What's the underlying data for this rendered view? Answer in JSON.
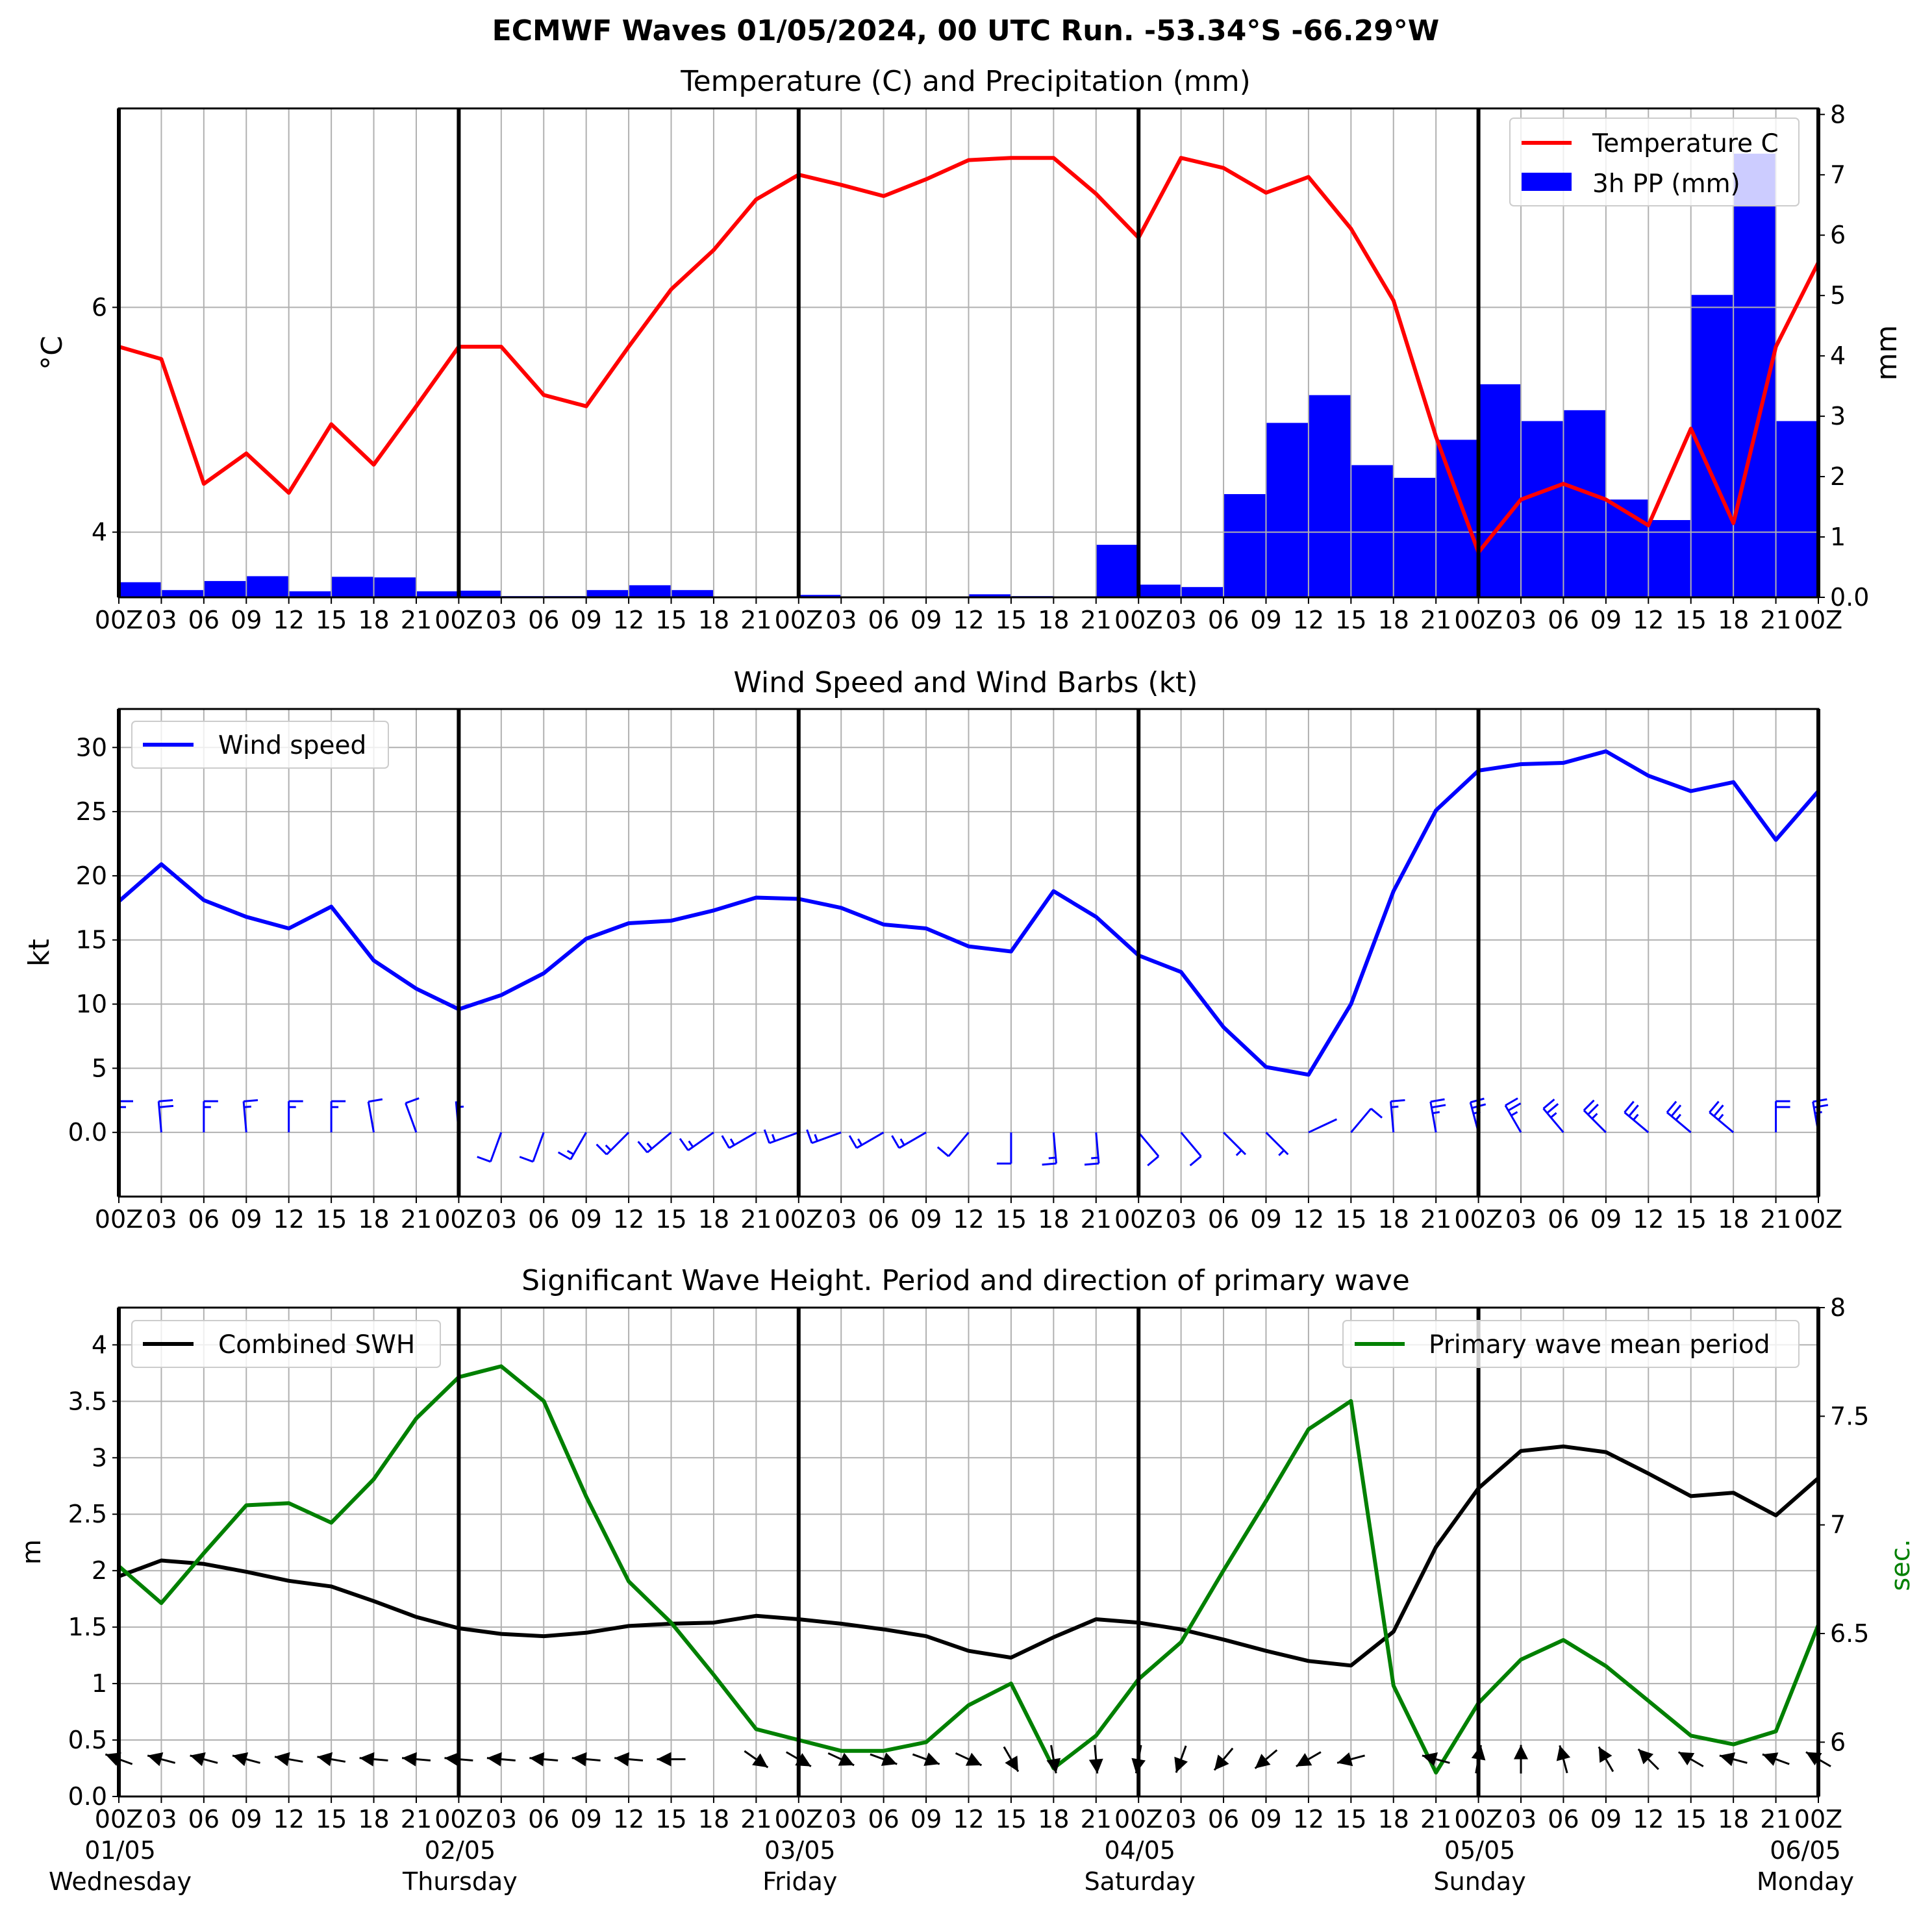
{
  "figure": {
    "suptitle": "ECMWF Waves 01/05/2024, 00 UTC Run. -53.34°S -66.29°W"
  },
  "time_axis": {
    "hours": [
      "00Z",
      "03",
      "06",
      "09",
      "12",
      "15",
      "18",
      "21",
      "00Z",
      "03",
      "06",
      "09",
      "12",
      "15",
      "18",
      "21",
      "00Z",
      "03",
      "06",
      "09",
      "12",
      "15",
      "18",
      "21",
      "00Z",
      "03",
      "06",
      "09",
      "12",
      "15",
      "18",
      "21",
      "00Z",
      "03",
      "06",
      "09",
      "12",
      "15",
      "18",
      "21",
      "00Z"
    ],
    "bottom_hours": [
      "00Z",
      "03",
      "06",
      "09",
      "12",
      "15",
      "18",
      "21",
      "00Z",
      "03",
      "06",
      "09",
      "12",
      "15",
      "18",
      "21",
      "00Z",
      "03",
      "06",
      "09",
      "12",
      "15",
      "18",
      "21",
      "00Z",
      "03",
      "06",
      "09",
      "12",
      "15",
      "18",
      "21",
      "00Z",
      "03",
      "06",
      "09",
      "12",
      "15",
      "18",
      "21",
      "00Z"
    ],
    "days": [
      {
        "date": "01/05",
        "weekday": "Wednesday"
      },
      {
        "date": "02/05",
        "weekday": "Thursday"
      },
      {
        "date": "03/05",
        "weekday": "Friday"
      },
      {
        "date": "04/05",
        "weekday": "Saturday"
      },
      {
        "date": "05/05",
        "weekday": "Sunday"
      },
      {
        "date": "06/05",
        "weekday": "Monday"
      }
    ]
  },
  "colors": {
    "temperature": "#ff0000",
    "precip": "#0000ff",
    "wind": "#0000ff",
    "swh": "#000000",
    "period": "#008000",
    "grid": "#b0b0b0"
  },
  "chart_data": [
    {
      "type": "line",
      "title": "Temperature (C) and Precipitation (mm)",
      "ylabel": "°C",
      "ylabel_right": "mm",
      "ylim": [
        3.42,
        7.77
      ],
      "ylim_right": [
        0,
        8.1
      ],
      "yticks": [
        4,
        6
      ],
      "yticks_right": [
        0,
        1,
        2,
        3,
        4,
        5,
        6,
        7,
        8
      ],
      "legend_position": "upper right",
      "series": [
        {
          "name": "Temperature C",
          "kind": "line",
          "axis": "left",
          "x_steps": [
            0,
            1,
            2,
            3,
            4,
            5,
            6,
            7,
            8,
            9,
            10,
            11,
            12,
            13,
            14,
            15,
            16,
            17,
            18,
            19,
            20,
            21,
            22,
            23,
            24,
            25,
            26,
            27,
            28,
            29,
            30,
            31,
            32,
            33,
            34,
            35,
            36,
            37,
            38,
            39,
            40
          ],
          "values": [
            5.65,
            5.54,
            4.43,
            4.7,
            4.35,
            4.96,
            4.6,
            5.12,
            5.65,
            5.65,
            5.22,
            5.12,
            5.65,
            6.16,
            6.51,
            6.96,
            7.18,
            7.09,
            6.99,
            7.14,
            7.31,
            7.33,
            7.33,
            7.01,
            6.62,
            7.33,
            7.24,
            7.02,
            7.16,
            6.7,
            6.06,
            4.85,
            3.82,
            4.29,
            4.43,
            4.29,
            4.06,
            4.92,
            4.08,
            5.65,
            6.4
          ]
        },
        {
          "name": "3h PP (mm)",
          "kind": "bar",
          "axis": "right",
          "x_steps_start": [
            0,
            1,
            2,
            3,
            4,
            5,
            6,
            7,
            8,
            9,
            10,
            11,
            12,
            13,
            14,
            15,
            16,
            17,
            18,
            19,
            20,
            21,
            22,
            23,
            24,
            25,
            26,
            27,
            28,
            29,
            30,
            31,
            32,
            33,
            34,
            35,
            36,
            37,
            38,
            39
          ],
          "values": [
            0.25,
            0.12,
            0.27,
            0.35,
            0.1,
            0.34,
            0.33,
            0.1,
            0.11,
            0.02,
            0.02,
            0.12,
            0.2,
            0.12,
            0.01,
            0.01,
            0.04,
            0.01,
            0.01,
            0.01,
            0.05,
            0.02,
            0.01,
            0.87,
            0.21,
            0.17,
            1.71,
            2.89,
            3.35,
            2.19,
            1.98,
            2.61,
            3.53,
            2.92,
            3.1,
            1.62,
            1.28,
            5.01,
            7.35,
            2.92
          ]
        }
      ]
    },
    {
      "type": "line",
      "title": "Wind Speed and Wind Barbs (kt)",
      "ylabel": "kt",
      "ylim": [
        -5,
        33
      ],
      "yticks": [
        0,
        5,
        10,
        15,
        20,
        25,
        30
      ],
      "legend_position": "upper left",
      "series": [
        {
          "name": "Wind speed",
          "x_steps": [
            0,
            1,
            2,
            3,
            4,
            5,
            6,
            7,
            8,
            9,
            10,
            11,
            12,
            13,
            14,
            15,
            16,
            17,
            18,
            19,
            20,
            21,
            22,
            23,
            24,
            25,
            26,
            27,
            28,
            29,
            30,
            31,
            32,
            33,
            34,
            35,
            36,
            37,
            38,
            39,
            40
          ],
          "values": [
            18.0,
            20.9,
            18.1,
            16.8,
            15.9,
            17.6,
            13.4,
            11.2,
            9.6,
            10.7,
            12.4,
            15.1,
            16.3,
            16.5,
            17.3,
            18.3,
            18.2,
            17.5,
            16.2,
            15.9,
            14.5,
            14.1,
            18.8,
            16.8,
            13.8,
            12.5,
            8.2,
            5.1,
            4.5,
            10.0,
            18.8,
            25.1,
            28.2,
            28.7,
            28.8,
            29.7,
            27.8,
            26.6,
            27.3,
            22.8,
            26.6
          ]
        }
      ],
      "wind_barbs": {
        "direction_from_deg": [
          0,
          355,
          0,
          355,
          0,
          0,
          350,
          340,
          355,
          200,
          200,
          210,
          225,
          230,
          235,
          240,
          250,
          250,
          240,
          240,
          220,
          180,
          175,
          175,
          140,
          140,
          135,
          135,
          65,
          40,
          355,
          350,
          345,
          330,
          320,
          315,
          310,
          310,
          310,
          0,
          350
        ]
      }
    },
    {
      "type": "line",
      "title": "Significant Wave Height. Period and direction of primary wave",
      "ylabel": "m",
      "ylabel_right": "sec.",
      "ylim": [
        0.0,
        4.33
      ],
      "ylim_right": [
        5.75,
        8.0
      ],
      "yticks": [
        0.0,
        0.5,
        1.0,
        1.5,
        2.0,
        2.5,
        3.0,
        3.5,
        4.0
      ],
      "yticks_right": [
        6.0,
        6.5,
        7.0,
        7.5,
        8.0
      ],
      "series": [
        {
          "name": "Combined SWH",
          "axis": "left",
          "legend_position": "upper left",
          "x_steps": [
            0,
            1,
            2,
            3,
            4,
            5,
            6,
            7,
            8,
            9,
            10,
            11,
            12,
            13,
            14,
            15,
            16,
            17,
            18,
            19,
            20,
            21,
            22,
            23,
            24,
            25,
            26,
            27,
            28,
            29,
            30,
            31,
            32,
            33,
            34,
            35,
            36,
            37,
            38,
            39,
            40
          ],
          "values": [
            1.95,
            2.09,
            2.06,
            1.99,
            1.91,
            1.86,
            1.73,
            1.59,
            1.49,
            1.44,
            1.42,
            1.45,
            1.51,
            1.53,
            1.54,
            1.6,
            1.57,
            1.53,
            1.48,
            1.42,
            1.29,
            1.23,
            1.41,
            1.57,
            1.54,
            1.48,
            1.39,
            1.29,
            1.2,
            1.16,
            1.46,
            2.21,
            2.73,
            3.06,
            3.1,
            3.05,
            2.86,
            2.66,
            2.69,
            2.49,
            2.82
          ]
        },
        {
          "name": "Primary wave mean period",
          "axis": "right",
          "legend_position": "upper right",
          "x_steps": [
            0,
            1,
            2,
            3,
            4,
            5,
            6,
            7,
            8,
            9,
            10,
            11,
            12,
            13,
            14,
            15,
            16,
            17,
            18,
            19,
            20,
            21,
            22,
            23,
            24,
            25,
            26,
            27,
            28,
            29,
            30,
            31,
            32,
            33,
            34,
            35,
            36,
            37,
            38,
            39,
            40
          ],
          "values": [
            6.81,
            6.64,
            6.87,
            7.09,
            7.1,
            7.01,
            7.21,
            7.49,
            7.68,
            7.73,
            7.57,
            7.13,
            6.74,
            6.55,
            6.31,
            6.06,
            6.01,
            5.96,
            5.96,
            6.0,
            6.17,
            6.27,
            5.88,
            6.03,
            6.29,
            6.46,
            6.79,
            7.11,
            7.44,
            7.57,
            6.26,
            5.86,
            6.18,
            6.38,
            6.47,
            6.35,
            6.19,
            6.03,
            5.99,
            6.05,
            6.54
          ]
        }
      ],
      "wave_arrows": {
        "steps": [
          0,
          1,
          2,
          3,
          4,
          5,
          6,
          7,
          8,
          9,
          10,
          11,
          12,
          13,
          15,
          16,
          17,
          18,
          19,
          20,
          21,
          22,
          23,
          24,
          25,
          26,
          27,
          28,
          29,
          31,
          32,
          33,
          34,
          35,
          36,
          37,
          38,
          39,
          40
        ],
        "direction_deg": [
          290,
          285,
          285,
          285,
          280,
          280,
          275,
          275,
          275,
          275,
          275,
          275,
          275,
          270,
          125,
          120,
          115,
          110,
          110,
          115,
          150,
          170,
          175,
          190,
          200,
          220,
          230,
          240,
          255,
          285,
          10,
          0,
          345,
          330,
          315,
          300,
          285,
          290,
          300
        ]
      }
    }
  ]
}
